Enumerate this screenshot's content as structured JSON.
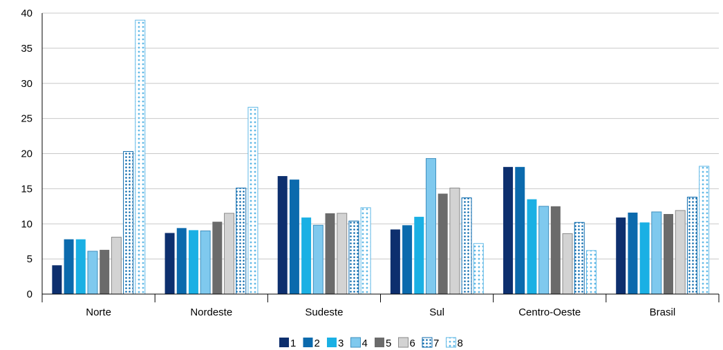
{
  "chart_data": {
    "type": "bar",
    "title": "",
    "xlabel": "",
    "ylabel": "",
    "ylim": [
      0,
      40
    ],
    "yticks": [
      0,
      5,
      10,
      15,
      20,
      25,
      30,
      35,
      40
    ],
    "grid": true,
    "legend_position": "bottom-center",
    "categories": [
      "Norte",
      "Nordeste",
      "Sudeste",
      "Sul",
      "Centro-Oeste",
      "Brasil"
    ],
    "series": [
      {
        "name": "1",
        "color": "#0d2f6e",
        "pattern": "solid",
        "values": [
          4.1,
          8.7,
          16.8,
          9.2,
          18.1,
          10.9
        ]
      },
      {
        "name": "2",
        "color": "#0b6aad",
        "pattern": "solid",
        "values": [
          7.8,
          9.4,
          16.3,
          9.8,
          18.1,
          11.6
        ]
      },
      {
        "name": "3",
        "color": "#1ab0e4",
        "pattern": "solid",
        "values": [
          7.8,
          9.1,
          10.9,
          11.0,
          13.5,
          10.2
        ]
      },
      {
        "name": "4",
        "color": "#7fc9ee",
        "pattern": "solid",
        "values": [
          6.1,
          9.0,
          9.8,
          19.3,
          12.5,
          11.7
        ]
      },
      {
        "name": "5",
        "color": "#6b6b6b",
        "pattern": "solid",
        "values": [
          6.3,
          10.3,
          11.5,
          14.3,
          12.5,
          11.4
        ]
      },
      {
        "name": "6",
        "color": "#d3d3d3",
        "pattern": "solid",
        "values": [
          8.1,
          11.5,
          11.5,
          15.1,
          8.6,
          11.9
        ]
      },
      {
        "name": "7",
        "color": "#0b6aad",
        "pattern": "dots-dense",
        "values": [
          20.3,
          15.1,
          10.4,
          13.7,
          10.2,
          13.8
        ]
      },
      {
        "name": "8",
        "color": "#5fb8e6",
        "pattern": "dots-sparse",
        "values": [
          39.0,
          26.6,
          12.3,
          7.2,
          6.2,
          18.2
        ]
      }
    ]
  }
}
